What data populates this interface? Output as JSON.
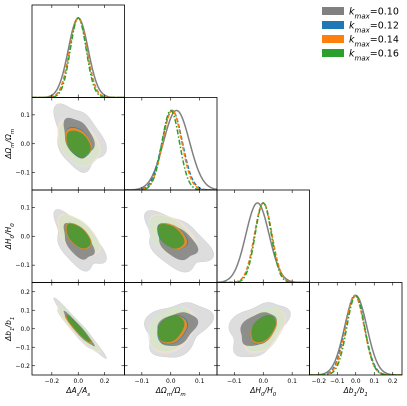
{
  "chart_data": {
    "type": "corner",
    "parameters": [
      {
        "name": "ΔAs/As",
        "label": "ΔA_s/A_s",
        "range": [
          -0.35,
          0.35
        ],
        "ticks": [
          -0.2,
          0.0,
          0.2
        ],
        "tick_labels": [
          "−0.2",
          "0.0",
          "0.2"
        ]
      },
      {
        "name": "ΔΩm/Ωm",
        "label": "ΔΩ_m/Ω_m",
        "range": [
          -0.16,
          0.16
        ],
        "ticks": [
          -0.1,
          0.0,
          0.1
        ],
        "tick_labels": [
          "−0.1",
          "0.0",
          "0.1"
        ]
      },
      {
        "name": "ΔH0/H0",
        "label": "ΔH_0/H_0",
        "range": [
          -0.16,
          0.16
        ],
        "ticks": [
          -0.1,
          0.0,
          0.1
        ],
        "tick_labels": [
          "−0.1",
          "0.0",
          "0.1"
        ]
      },
      {
        "name": "Δb1/b1",
        "label": "Δb_1/b_1",
        "range": [
          -0.25,
          0.25
        ],
        "ticks": [
          -0.2,
          -0.1,
          0.0,
          0.1,
          0.2
        ],
        "tick_labels": [
          "−0.2",
          "−0.1",
          "0.0",
          "0.1",
          "0.2"
        ]
      }
    ],
    "series": [
      {
        "name": "k_max=0.10",
        "color": "#808080",
        "linestyle": "solid",
        "mean": [
          0.0,
          0.02,
          -0.02,
          0.0
        ],
        "sigma": [
          0.075,
          0.045,
          0.04,
          0.06
        ]
      },
      {
        "name": "k_max=0.12",
        "color": "#1f77b4",
        "linestyle": "dashed",
        "mean": [
          0.0,
          0.005,
          0.0,
          -0.005
        ],
        "sigma": [
          0.065,
          0.035,
          0.03,
          0.052
        ]
      },
      {
        "name": "k_max=0.14",
        "color": "#ff7f0e",
        "linestyle": "dashed",
        "mean": [
          0.0,
          0.005,
          0.0,
          -0.005
        ],
        "sigma": [
          0.065,
          0.033,
          0.03,
          0.05
        ]
      },
      {
        "name": "k_max=0.16",
        "color": "#2ca02c",
        "linestyle": "dashdot",
        "mean": [
          0.0,
          0.0,
          0.0,
          0.0
        ],
        "sigma": [
          0.06,
          0.03,
          0.028,
          0.048
        ]
      }
    ],
    "correlations": {
      "1,0": -0.35,
      "2,0": -0.55,
      "2,1": -0.45,
      "3,0": -0.95,
      "3,1": 0.3,
      "3,2": 0.4
    },
    "legend_position": "top-right"
  }
}
